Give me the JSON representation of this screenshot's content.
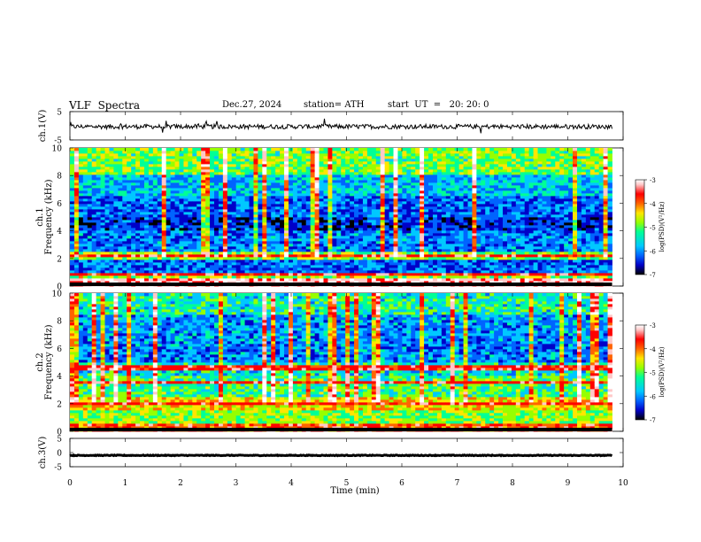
{
  "header": {
    "title": "VLF  Spectra",
    "date": "Dec.27, 2024",
    "station": "station= ATH",
    "start": "start  UT  =   20: 20: 0"
  },
  "chart_data": [
    {
      "type": "line",
      "name": "ch1-waveform",
      "ylabel": "ch.1(V)",
      "ylim": [
        -5,
        5
      ],
      "yticks": [
        "5",
        "-5"
      ],
      "xlim": [
        0,
        10
      ],
      "x_extent": [
        0,
        9.8
      ],
      "baseline": -0.3,
      "color": "#000000"
    },
    {
      "type": "heatmap",
      "name": "ch1-spectrogram",
      "channel_label": "ch.1",
      "ylabel": "Frequency  (kHz)",
      "ylim": [
        0,
        10
      ],
      "yticks": [
        "0",
        "2",
        "4",
        "6",
        "8",
        "10"
      ],
      "xlim": [
        0,
        10
      ],
      "x_extent": [
        0,
        9.8
      ],
      "colorbar": {
        "label": "log(PSD)(V²/Hz)",
        "range": [
          -7,
          -3
        ],
        "ticks": [
          "-3",
          "-4",
          "-5",
          "-6",
          "-7"
        ]
      },
      "bands": [
        {
          "f_from": 0.0,
          "f_to": 0.5,
          "level": -3.4
        },
        {
          "f_from": 0.5,
          "f_to": 1.0,
          "level": -4.9
        },
        {
          "f_from": 1.0,
          "f_to": 2.0,
          "level": -6.2
        },
        {
          "f_from": 2.0,
          "f_to": 2.5,
          "level": -5.0
        },
        {
          "f_from": 2.5,
          "f_to": 4.0,
          "level": -6.1
        },
        {
          "f_from": 4.0,
          "f_to": 5.0,
          "level": -6.5
        },
        {
          "f_from": 5.0,
          "f_to": 6.5,
          "level": -6.2
        },
        {
          "f_from": 6.5,
          "f_to": 8.0,
          "level": -5.8
        },
        {
          "f_from": 8.0,
          "f_to": 10.0,
          "level": -5.1
        }
      ],
      "hot_lines_khz": [
        0.45,
        0.8,
        2.2
      ]
    },
    {
      "type": "heatmap",
      "name": "ch2-spectrogram",
      "channel_label": "ch.2",
      "ylabel": "Frequency  (kHz)",
      "ylim": [
        0,
        10
      ],
      "yticks": [
        "0",
        "2",
        "4",
        "6",
        "8",
        "10"
      ],
      "xlim": [
        0,
        10
      ],
      "x_extent": [
        0,
        9.8
      ],
      "colorbar": {
        "label": "log(PSD)(V²/Hz)",
        "range": [
          -7,
          -3
        ],
        "ticks": [
          "-3",
          "-4",
          "-5",
          "-6",
          "-7"
        ]
      },
      "bands": [
        {
          "f_from": 0.0,
          "f_to": 0.5,
          "level": -4.0
        },
        {
          "f_from": 0.5,
          "f_to": 1.5,
          "level": -5.0
        },
        {
          "f_from": 1.5,
          "f_to": 2.5,
          "level": -4.6
        },
        {
          "f_from": 2.5,
          "f_to": 4.0,
          "level": -5.3
        },
        {
          "f_from": 4.0,
          "f_to": 5.0,
          "level": -5.6
        },
        {
          "f_from": 5.0,
          "f_to": 6.5,
          "level": -6.1
        },
        {
          "f_from": 6.5,
          "f_to": 8.5,
          "level": -6.0
        },
        {
          "f_from": 8.5,
          "f_to": 10.0,
          "level": -5.5
        }
      ],
      "hot_lines_khz": [
        2.0,
        3.5,
        4.6
      ]
    },
    {
      "type": "line",
      "name": "ch3-waveform",
      "ylabel": "ch.3(V)",
      "ylim": [
        -5,
        5
      ],
      "yticks": [
        "5",
        "0",
        "-5"
      ],
      "xlim": [
        0,
        10
      ],
      "x_extent": [
        0,
        9.8
      ],
      "baseline": -1.0,
      "color": "#000000"
    }
  ],
  "xaxis": {
    "label": "Time  (min)",
    "ticks": [
      "0",
      "1",
      "2",
      "3",
      "4",
      "5",
      "6",
      "7",
      "8",
      "9",
      "10"
    ]
  },
  "colormap": [
    "#000000",
    "#0000c8",
    "#0064ff",
    "#00c8ff",
    "#00ff96",
    "#96ff00",
    "#ffe600",
    "#ff6400",
    "#ff0000",
    "#ffc8c8",
    "#ffffff"
  ]
}
